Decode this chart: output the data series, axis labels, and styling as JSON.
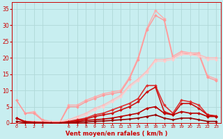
{
  "bg_color": "#c8eef0",
  "grid_color": "#b0d8d8",
  "x_all": [
    0,
    1,
    2,
    3,
    4,
    5,
    6,
    7,
    8,
    9,
    10,
    11,
    12,
    13,
    14,
    15,
    16,
    17,
    18,
    19,
    20,
    21,
    22,
    23
  ],
  "x_tick_pos": [
    0,
    1,
    2,
    3,
    6,
    7,
    8,
    9,
    10,
    11,
    12,
    13,
    14,
    15,
    16,
    17,
    18,
    19,
    20,
    21,
    22,
    23
  ],
  "x_tick_labels": [
    "0",
    "1",
    "2",
    "3",
    "6",
    "7",
    "8",
    "9",
    "10",
    "11",
    "12",
    "13",
    "14",
    "15",
    "16",
    "17",
    "18",
    "19",
    "20",
    "21",
    "22",
    "23"
  ],
  "xlabel": "Vent moyen/en rafales ( km/h )",
  "ylim": [
    0,
    37
  ],
  "yticks": [
    0,
    5,
    10,
    15,
    20,
    25,
    30,
    35
  ],
  "lines": [
    {
      "y": [
        7.0,
        3.0,
        3.5,
        1.0,
        0.5,
        0.3,
        5.5,
        5.5,
        7.0,
        8.0,
        9.0,
        9.5,
        10.0,
        14.0,
        20.0,
        29.0,
        34.5,
        32.0,
        20.5,
        22.0,
        21.5,
        21.5,
        14.5,
        13.5
      ],
      "color": "#ffaaaa",
      "lw": 1.0,
      "marker": "D",
      "ms": 2.0
    },
    {
      "y": [
        7.0,
        3.0,
        3.0,
        0.8,
        0.3,
        0.2,
        5.0,
        5.0,
        6.5,
        7.5,
        8.5,
        9.0,
        9.5,
        13.5,
        19.5,
        28.5,
        33.0,
        31.5,
        20.0,
        21.5,
        21.0,
        21.0,
        14.0,
        13.0
      ],
      "color": "#ff9999",
      "lw": 1.0,
      "marker": "D",
      "ms": 2.0
    },
    {
      "y": [
        0.5,
        0.5,
        0.5,
        0.5,
        0.5,
        0.5,
        1.0,
        2.0,
        3.0,
        4.5,
        5.5,
        7.0,
        8.5,
        11.5,
        13.5,
        16.0,
        19.5,
        19.5,
        20.0,
        21.5,
        21.5,
        21.0,
        20.0,
        20.0
      ],
      "color": "#ffbbbb",
      "lw": 1.0,
      "marker": "D",
      "ms": 2.0
    },
    {
      "y": [
        0.3,
        0.3,
        0.3,
        0.3,
        0.3,
        0.3,
        0.8,
        1.5,
        2.5,
        4.0,
        5.0,
        6.5,
        8.0,
        11.0,
        13.0,
        15.5,
        19.0,
        19.0,
        19.5,
        21.0,
        21.0,
        20.5,
        19.5,
        19.5
      ],
      "color": "#ffcccc",
      "lw": 1.0,
      "marker": "D",
      "ms": 2.0
    },
    {
      "y": [
        1.5,
        0.5,
        0.3,
        0.2,
        0.1,
        0.1,
        0.5,
        1.0,
        1.5,
        2.5,
        3.0,
        4.0,
        5.0,
        6.0,
        7.5,
        11.5,
        11.5,
        5.5,
        3.0,
        7.0,
        6.5,
        5.5,
        2.5,
        2.2
      ],
      "color": "#dd3333",
      "lw": 1.2,
      "marker": "D",
      "ms": 2.0
    },
    {
      "y": [
        1.5,
        0.4,
        0.2,
        0.1,
        0.05,
        0.05,
        0.4,
        0.8,
        1.2,
        2.0,
        2.5,
        3.0,
        4.0,
        5.0,
        6.5,
        9.5,
        11.0,
        3.5,
        2.5,
        6.0,
        6.0,
        4.5,
        2.5,
        2.0
      ],
      "color": "#cc1111",
      "lw": 1.2,
      "marker": "D",
      "ms": 2.0
    },
    {
      "y": [
        1.5,
        0.3,
        0.1,
        0.1,
        0.05,
        0.05,
        0.2,
        0.5,
        0.8,
        1.0,
        1.2,
        1.5,
        2.0,
        2.5,
        3.0,
        4.5,
        5.0,
        3.0,
        2.5,
        3.5,
        3.0,
        3.0,
        2.0,
        2.0
      ],
      "color": "#bb0000",
      "lw": 1.2,
      "marker": "D",
      "ms": 2.0
    },
    {
      "y": [
        0.5,
        0.1,
        0.05,
        0.05,
        0.02,
        0.02,
        0.1,
        0.2,
        0.3,
        0.5,
        0.6,
        0.8,
        1.0,
        1.2,
        1.5,
        2.0,
        2.5,
        1.5,
        1.0,
        1.5,
        1.5,
        1.0,
        0.5,
        0.5
      ],
      "color": "#990000",
      "lw": 1.2,
      "marker": "D",
      "ms": 1.8
    }
  ]
}
